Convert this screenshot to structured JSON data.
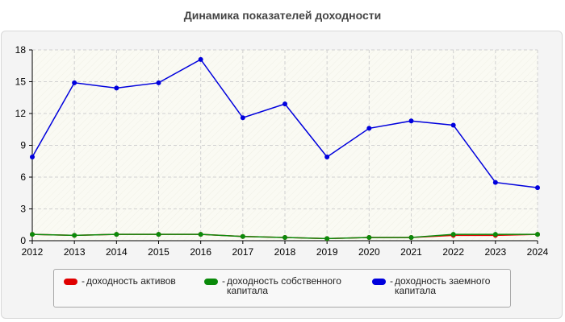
{
  "title": "Динамика показателей доходности",
  "colors": {
    "assets": "#e00000",
    "equity": "#0a8a0a",
    "debt": "#0000dd",
    "grid": "#d0d0d0",
    "axis": "#000000"
  },
  "legend": {
    "items": [
      {
        "dash": "-",
        "label": "доходность активов",
        "color": "#e00000"
      },
      {
        "dash": "-",
        "label": "доходность собственного\nкапитала",
        "color": "#0a8a0a"
      },
      {
        "dash": "-",
        "label": "доходность заемного\nкапитала",
        "color": "#0000dd"
      }
    ]
  },
  "chart_data": {
    "type": "line",
    "title": "Динамика показателей доходности",
    "x": [
      "2012",
      "2013",
      "2014",
      "2015",
      "2016",
      "2017",
      "2018",
      "2019",
      "2020",
      "2021",
      "2022",
      "2023",
      "2024"
    ],
    "ylim": [
      0,
      18
    ],
    "yticks": [
      0,
      3,
      6,
      9,
      12,
      15,
      18
    ],
    "grid": true,
    "legend_position": "bottom",
    "series": [
      {
        "name": "доходность активов",
        "color": "#e00000",
        "values": [
          0.6,
          0.5,
          0.6,
          0.6,
          0.6,
          0.4,
          0.3,
          0.2,
          0.3,
          0.3,
          0.5,
          0.5,
          0.6
        ]
      },
      {
        "name": "доходность собственного капитала",
        "color": "#0a8a0a",
        "values": [
          0.6,
          0.5,
          0.6,
          0.6,
          0.6,
          0.4,
          0.3,
          0.2,
          0.3,
          0.3,
          0.6,
          0.6,
          0.6
        ]
      },
      {
        "name": "доходность заемного капитала",
        "color": "#0000dd",
        "values": [
          7.9,
          14.9,
          14.4,
          14.9,
          17.1,
          11.6,
          12.9,
          7.9,
          10.6,
          11.3,
          10.9,
          5.5,
          5.0
        ]
      }
    ]
  }
}
